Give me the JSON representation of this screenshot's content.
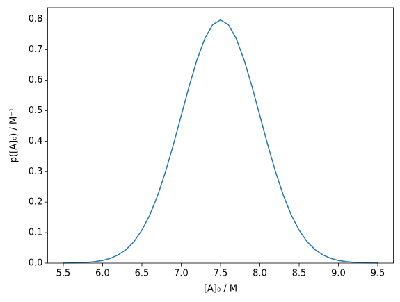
{
  "chart_data": {
    "type": "line",
    "xlabel": "[A]₀ / M",
    "ylabel": "p([A]₀) / M⁻¹",
    "x": [
      5.5,
      5.6,
      5.7,
      5.8,
      5.9,
      6.0,
      6.1,
      6.2,
      6.3,
      6.4,
      6.5,
      6.6,
      6.7,
      6.8,
      6.9,
      7.0,
      7.1,
      7.2,
      7.3,
      7.4,
      7.5,
      7.6,
      7.7,
      7.8,
      7.9,
      8.0,
      8.1,
      8.2,
      8.3,
      8.4,
      8.5,
      8.6,
      8.7,
      8.8,
      8.9,
      9.0,
      9.1,
      9.2,
      9.3,
      9.4,
      9.5
    ],
    "series": [
      {
        "color": "#1f77b4",
        "values": [
          0.0003,
          0.0006,
          0.0012,
          0.0025,
          0.0048,
          0.0089,
          0.0158,
          0.0272,
          0.0448,
          0.0709,
          0.108,
          0.1579,
          0.2218,
          0.2995,
          0.3884,
          0.4839,
          0.5794,
          0.6665,
          0.7365,
          0.7821,
          0.7979,
          0.7821,
          0.7365,
          0.6665,
          0.5794,
          0.4839,
          0.3884,
          0.2995,
          0.2218,
          0.1579,
          0.108,
          0.0709,
          0.0448,
          0.0272,
          0.0158,
          0.0089,
          0.0048,
          0.0025,
          0.0012,
          0.0006,
          0.0003
        ]
      }
    ],
    "xlim": [
      5.3,
      9.7
    ],
    "ylim": [
      0,
      0.838
    ],
    "xticks": [
      5.5,
      {
        "value": 6,
        "label": "6.0"
      },
      6.5,
      {
        "value": 7,
        "label": "7.0"
      },
      7.5,
      {
        "value": 8,
        "label": "8.0"
      },
      8.5,
      {
        "value": 9,
        "label": "9.0"
      },
      9.5
    ],
    "yticks": [
      {
        "value": 0,
        "label": "0.0"
      },
      0.1,
      0.2,
      0.3,
      0.4,
      0.5,
      0.6,
      0.7,
      0.8
    ]
  }
}
